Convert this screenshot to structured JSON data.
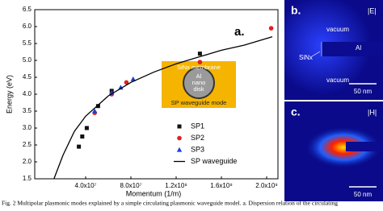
{
  "chart_data": {
    "type": "scatter",
    "xlabel": "Momentum (1/m)",
    "ylabel": "Energy (eV)",
    "panel_label": "a.",
    "xlim": [
      -5000000,
      210000000
    ],
    "ylim": [
      1.5,
      6.5
    ],
    "xticks": [
      {
        "value": 40000000,
        "label": "4.0x10⁷"
      },
      {
        "value": 80000000,
        "label": "8.0x10⁷"
      },
      {
        "value": 120000000,
        "label": "1.2x10⁸"
      },
      {
        "value": 160000000,
        "label": "1.6x10⁸"
      },
      {
        "value": 200000000,
        "label": "2.0x10⁸"
      }
    ],
    "yticks": [
      1.5,
      {
        "value": 2,
        "label": "2.0"
      },
      2.5,
      {
        "value": 3,
        "label": "3.0"
      },
      3.5,
      {
        "value": 4,
        "label": "4.0"
      },
      4.5,
      {
        "value": 5,
        "label": "5.0"
      },
      5.5,
      {
        "value": 6,
        "label": "6.0"
      },
      6.5
    ],
    "series": [
      {
        "name": "SP1",
        "color": "#111111",
        "marker": "square",
        "x": [
          34000000,
          37000000,
          41000000,
          51000000,
          63000000,
          141000000
        ],
        "values": [
          2.45,
          2.75,
          3.0,
          3.65,
          4.1,
          5.2
        ]
      },
      {
        "name": "SP2",
        "color": "#e02020",
        "marker": "circle",
        "x": [
          48000000,
          63000000,
          76000000,
          141000000,
          204000000
        ],
        "values": [
          3.45,
          4.0,
          4.35,
          4.95,
          5.95
        ]
      },
      {
        "name": "SP3",
        "color": "#1a3fd0",
        "marker": "triangle",
        "x": [
          48000000,
          63000000,
          71000000,
          82000000
        ],
        "values": [
          3.5,
          4.05,
          4.2,
          4.45
        ]
      },
      {
        "name": "SP waveguide",
        "color": "#000000",
        "marker": "line",
        "x": [
          12000000,
          20000000,
          30000000,
          40000000,
          60000000,
          80000000,
          100000000,
          120000000,
          140000000,
          160000000,
          180000000,
          205000000
        ],
        "values": [
          1.5,
          2.2,
          2.9,
          3.35,
          3.95,
          4.35,
          4.65,
          4.9,
          5.1,
          5.3,
          5.45,
          5.7
        ]
      }
    ],
    "inset": {
      "top": "SiNx membrane",
      "disk": [
        "Al",
        "nano",
        "disk"
      ],
      "bottom": "SP waveguide mode"
    }
  },
  "panels": [
    {
      "label": "b.",
      "field": "|E|",
      "texts": [
        "vacuum",
        "SiNx",
        "Al",
        "vacuum"
      ],
      "scale": "50 nm"
    },
    {
      "label": "c.",
      "field": "|H|",
      "scale": "50 nm"
    }
  ],
  "caption": "Fig. 2  Multipolar plasmonic modes explained by a simple circulating plasmonic waveguide model. a. Dispersion relation of the circulating"
}
